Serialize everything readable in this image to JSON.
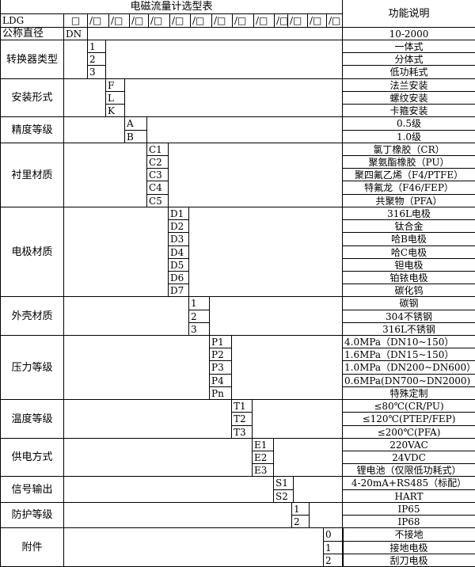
{
  "title": "电磁流量计选型表",
  "function_header": "功能说明",
  "model_row": {
    "prefix": "LDG",
    "first_slot": "□",
    "slot": "/□",
    "slot_count": 13
  },
  "diameter": {
    "label": "公称直径",
    "code": "DN",
    "desc": "10-2000"
  },
  "groups": [
    {
      "label": "转换器类型",
      "codes": [
        "1",
        "2",
        "3"
      ],
      "descs": [
        "一体式",
        "分体式",
        "低功耗式"
      ]
    },
    {
      "label": "安装形式",
      "codes": [
        "F",
        "L",
        "K"
      ],
      "descs": [
        "法兰安装",
        "螺纹安装",
        "卡箍安装"
      ]
    },
    {
      "label": "精度等级",
      "codes": [
        "A",
        "B"
      ],
      "descs": [
        "0.5级",
        "1.0级"
      ]
    },
    {
      "label": "衬里材质",
      "codes": [
        "C1",
        "C2",
        "C3",
        "C4",
        "C5"
      ],
      "descs": [
        "氯丁橡胶（CR）",
        "聚氨酯橡胶（PU）",
        "聚四氟乙烯（F4/PTFE）",
        "特氟龙（F46/FEP）",
        "共聚物（PFA）"
      ]
    },
    {
      "label": "电极材质",
      "codes": [
        "D1",
        "D2",
        "D3",
        "D4",
        "D5",
        "D6",
        "D7"
      ],
      "descs": [
        "316L电极",
        "钛合金",
        "哈B电极",
        "哈C电极",
        "钽电极",
        "铂铱电极",
        "碳化钨"
      ]
    },
    {
      "label": "外壳材质",
      "codes": [
        "1",
        "2",
        "3"
      ],
      "descs": [
        "碳钢",
        "304不锈钢",
        "316L不锈钢"
      ]
    },
    {
      "label": "压力等级",
      "codes": [
        "P1",
        "P2",
        "P3",
        "P4",
        "Pn"
      ],
      "descs": [
        "4.0MPa（DN10~150）",
        "1.6MPa（DN15~150）",
        "1.0MPa（DN200~DN600）",
        "0.6MPa(DN700~DN2000)",
        "特殊定制"
      ]
    },
    {
      "label": "温度等级",
      "codes": [
        "T1",
        "T2",
        "T3"
      ],
      "descs": [
        "≤80℃(CR/PU)",
        "≤120℃(PTEP/FEP)",
        "≤200℃(PFA)"
      ]
    },
    {
      "label": "供电方式",
      "codes": [
        "E1",
        "E2",
        "E3"
      ],
      "descs": [
        "220VAC",
        "24VDC",
        "锂电池（仅限低功耗式）"
      ]
    },
    {
      "label": "信号输出",
      "codes": [
        "S1",
        "S2"
      ],
      "descs": [
        "4-20mA+RS485（标配）",
        "HART"
      ]
    },
    {
      "label": "防护等级",
      "codes": [
        "1",
        "2"
      ],
      "descs": [
        "IP65",
        "IP68"
      ]
    },
    {
      "label": "附件",
      "codes": [
        "0",
        "1",
        "2"
      ],
      "descs": [
        "不接地",
        "接地电极",
        "刮刀电极"
      ]
    }
  ]
}
